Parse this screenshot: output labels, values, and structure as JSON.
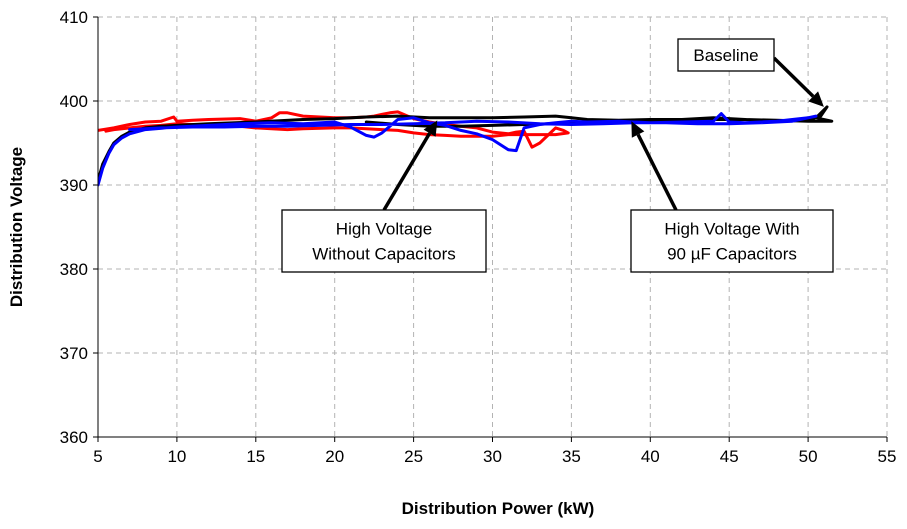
{
  "chart_data": {
    "type": "line",
    "xlabel": "Distribution Power (kW)",
    "ylabel": "Distribution Voltage",
    "xlim": [
      5,
      55
    ],
    "ylim": [
      360,
      410
    ],
    "xticks": [
      5,
      10,
      15,
      20,
      25,
      30,
      35,
      40,
      45,
      50,
      55
    ],
    "yticks": [
      360,
      370,
      380,
      390,
      400,
      410
    ],
    "grid": true,
    "legend": "none",
    "series": [
      {
        "color": "#ff0000",
        "x": [
          5,
          6,
          7,
          8,
          9,
          9.8,
          10,
          11,
          12,
          14,
          15,
          16,
          16.5,
          17,
          18,
          20,
          21,
          22,
          22.5,
          23,
          23.5,
          24,
          24.5,
          25,
          26,
          27,
          28,
          29,
          30,
          31,
          31.5,
          32,
          32.5,
          33,
          34,
          34.5,
          34.8,
          34,
          33,
          32,
          31,
          30,
          29,
          28,
          27,
          26,
          25,
          24,
          23,
          22,
          21,
          20,
          18,
          17,
          16,
          15,
          14,
          12,
          10,
          9,
          8,
          7,
          6,
          5.5
        ],
        "y": [
          396.5,
          396.8,
          397.2,
          397.5,
          397.6,
          398.1,
          397.6,
          397.7,
          397.8,
          397.9,
          397.6,
          398.0,
          398.6,
          398.6,
          398.2,
          398.0,
          398.0,
          398.1,
          398.2,
          398.4,
          398.6,
          398.7,
          398.3,
          397.9,
          397.5,
          397.2,
          397.0,
          396.8,
          396.3,
          396.1,
          396.3,
          396.4,
          394.5,
          395.0,
          396.8,
          396.5,
          396.2,
          396.0,
          396.0,
          396.0,
          396.0,
          395.8,
          395.8,
          395.8,
          395.9,
          396.0,
          396.2,
          396.5,
          396.6,
          396.7,
          396.8,
          396.8,
          396.7,
          396.6,
          396.7,
          396.8,
          397.0,
          397.1,
          397.3,
          397.1,
          397.0,
          396.8,
          396.6,
          396.4
        ]
      },
      {
        "color": "#000000",
        "x": [
          5,
          5.3,
          5.7,
          6,
          6.5,
          7,
          8,
          9,
          10,
          12,
          15,
          18,
          20,
          22,
          24,
          26,
          28,
          30,
          32,
          34,
          35,
          36,
          38,
          40,
          42,
          44,
          46,
          48,
          50,
          50.8,
          51.2,
          50.5,
          51.5,
          50,
          48,
          46,
          44,
          42,
          40,
          38,
          36,
          34,
          32,
          30,
          28,
          26,
          24,
          22
        ],
        "y": [
          390.5,
          392.5,
          394.0,
          395.0,
          395.8,
          396.3,
          396.8,
          397.0,
          397.1,
          397.3,
          397.5,
          397.8,
          397.9,
          398.1,
          398.2,
          398.0,
          398.0,
          398.0,
          398.1,
          398.2,
          398.0,
          397.8,
          397.7,
          397.8,
          397.8,
          398.0,
          397.8,
          397.6,
          397.7,
          398.2,
          399.3,
          398.0,
          397.6,
          397.6,
          397.7,
          397.8,
          397.8,
          397.6,
          397.5,
          397.5,
          397.4,
          397.3,
          397.2,
          397.1,
          397.0,
          397.0,
          397.2,
          397.5
        ]
      },
      {
        "color": "#0000ff",
        "x": [
          5,
          5.3,
          5.7,
          6,
          6.5,
          7,
          8,
          10,
          12,
          14,
          16,
          18,
          20,
          21,
          22,
          22.5,
          23,
          24,
          25,
          26,
          27,
          28,
          29,
          30,
          31,
          31.5,
          32,
          33,
          34,
          35,
          36,
          38,
          40,
          42,
          44,
          44.5,
          45,
          46,
          48,
          50,
          50.5,
          49,
          47,
          45,
          43,
          41,
          39,
          37,
          35,
          33,
          31,
          29,
          27,
          25,
          23,
          21,
          19,
          17,
          15,
          13,
          11,
          9,
          7
        ],
        "y": [
          390.0,
          392.0,
          393.8,
          394.8,
          395.6,
          396.1,
          396.6,
          396.9,
          397.1,
          397.3,
          397.4,
          397.3,
          397.5,
          396.9,
          395.9,
          395.7,
          396.2,
          397.8,
          398.0,
          397.4,
          397.1,
          396.5,
          396.1,
          395.4,
          394.2,
          394.1,
          396.8,
          397.2,
          397.4,
          397.6,
          397.5,
          397.6,
          397.4,
          397.5,
          397.6,
          398.5,
          397.5,
          397.4,
          397.6,
          398.0,
          398.2,
          397.6,
          397.4,
          397.3,
          397.3,
          397.4,
          397.4,
          397.3,
          397.2,
          397.3,
          397.5,
          397.6,
          397.4,
          397.3,
          397.2,
          397.2,
          397.1,
          397.0,
          397.0,
          396.9,
          396.9,
          396.8,
          396.6
        ]
      }
    ],
    "annotations": [
      {
        "lines": [
          "Baseline"
        ],
        "point_to": [
          51.0,
          399.3
        ]
      },
      {
        "lines": [
          "High Voltage",
          "Without Capacitors"
        ],
        "point_to": [
          26.5,
          397.7
        ]
      },
      {
        "lines": [
          "High Voltage With",
          "90 µF Capacitors"
        ],
        "point_to": [
          38.8,
          397.6
        ]
      }
    ]
  }
}
